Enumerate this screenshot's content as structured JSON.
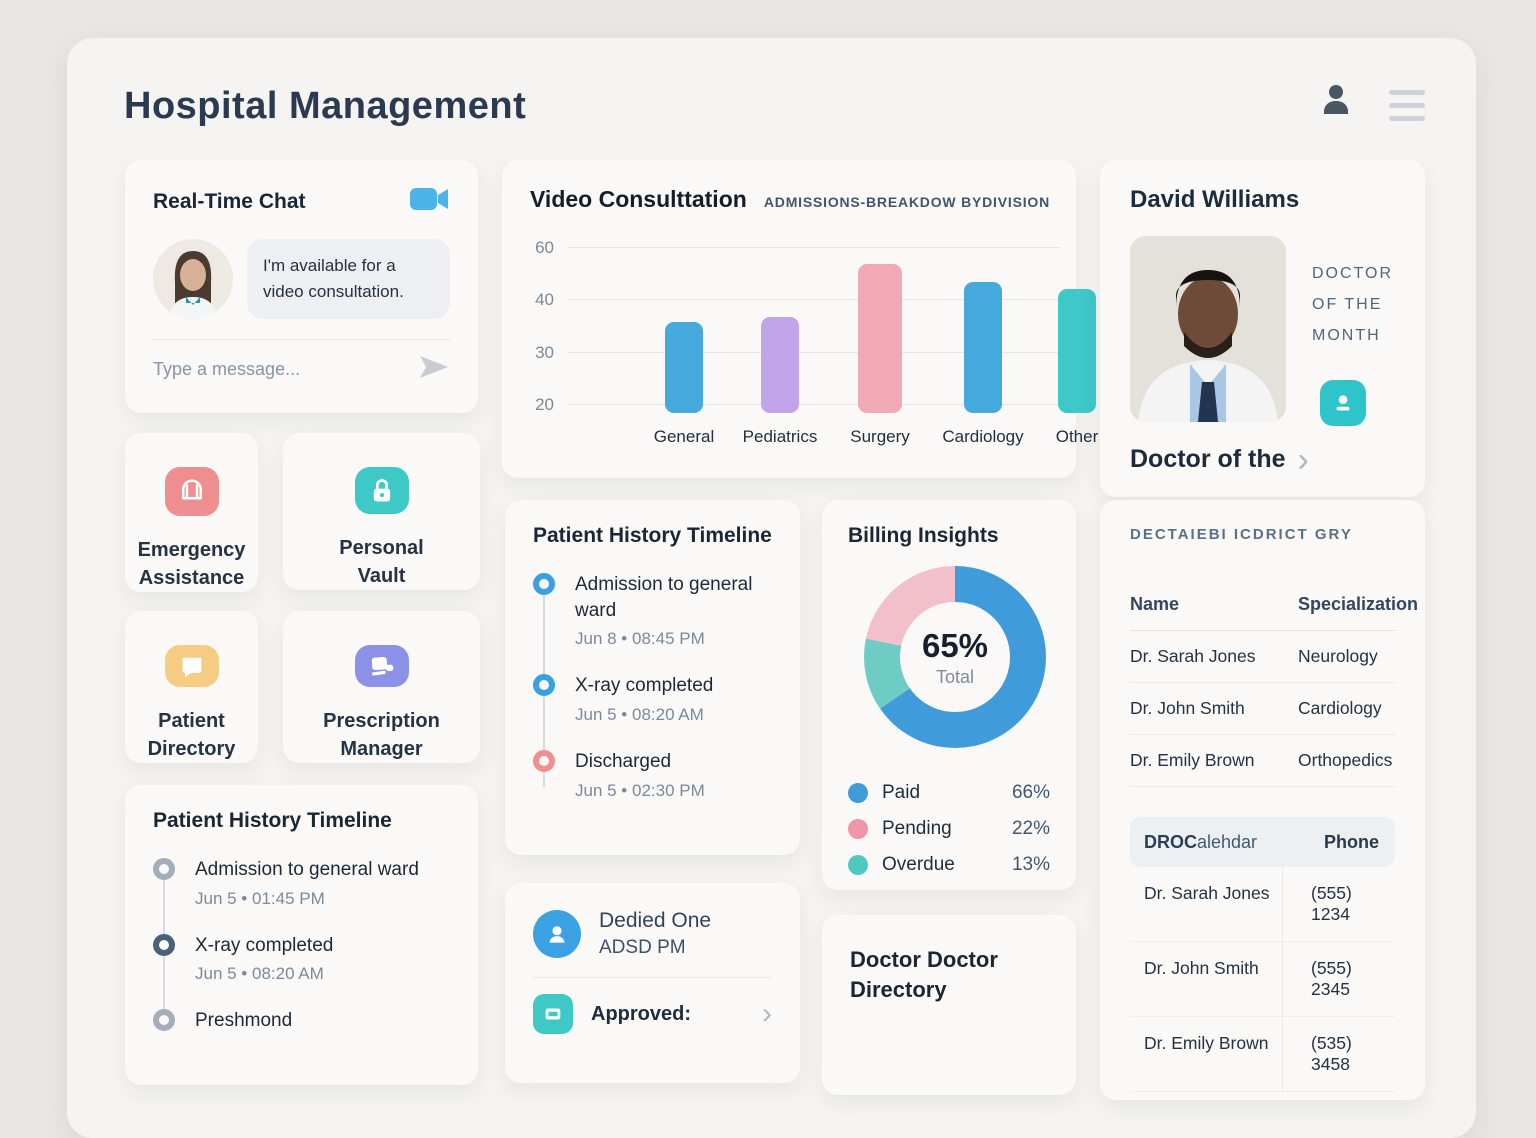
{
  "header": {
    "title": "Hospital Management",
    "profile_icon": "user-icon",
    "menu_icon": "hamburger-menu-icon"
  },
  "chat": {
    "title": "Real-Time Chat",
    "video_icon": "video-camera-icon",
    "message": "I'm available for a video consultation.",
    "input_placeholder": "Type a message...",
    "send_icon": "paper-plane-icon"
  },
  "feature_cards": [
    {
      "label": "Emergency Assistance",
      "icon": "bell-icon",
      "color": "#ee8e8e"
    },
    {
      "label": "Personal Vault",
      "icon": "lock-icon",
      "color": "#3ec9c6"
    },
    {
      "label": "Patient Directory",
      "icon": "chat-bubble-icon",
      "color": "#f6cc83"
    },
    {
      "label": "Prescription Manager",
      "icon": "prescription-cards-icon",
      "color": "#8d92e9"
    }
  ],
  "timeline_mid": {
    "title": "Patient History Timeline",
    "items": [
      {
        "title": "Admission to general ward",
        "time": "Jun 8 • 08:45 PM",
        "dot": "#3aa0e0"
      },
      {
        "title": "X-ray completed",
        "time": "Jun 5 • 08:20 AM",
        "dot": "#3aa0e0"
      },
      {
        "title": "Discharged",
        "time": "Jun 5 • 02:30 PM",
        "dot": "#ef8f8f"
      }
    ]
  },
  "timeline_bottom": {
    "title": "Patient History Timeline",
    "items": [
      {
        "title": "Admission to general ward",
        "time": "Jun 5 • 01:45 PM",
        "dot": "#a3aeba"
      },
      {
        "title": "X-ray completed",
        "time": "Jun 5 • 08:20 AM",
        "dot": "#47617a"
      },
      {
        "title": "Preshmond",
        "time": "",
        "dot": "#a3aeba"
      }
    ]
  },
  "chart_data": [
    {
      "type": "bar",
      "title": "Video Consulttation",
      "subtitle": "ADMISSIONS-BREAKDOW BYDIVISION",
      "categories": [
        "General",
        "Pediatrics",
        "Surgery",
        "Cardiology",
        "Other"
      ],
      "values": [
        36,
        37,
        54,
        47,
        45
      ],
      "xlabel": "",
      "ylabel": "",
      "ylim": [
        20,
        60
      ],
      "ytick_labels": [
        "60",
        "40",
        "30",
        "20"
      ],
      "grid": true,
      "legend_position": "none",
      "bar_colors": [
        "#45a9de",
        "#c2a4ea",
        "#f2a9b6",
        "#45a9de",
        "#3fc8c8"
      ],
      "bar_height_pct": [
        55,
        58,
        90,
        79,
        75
      ]
    },
    {
      "type": "donut",
      "title": "Billing Insights",
      "center_value": "65%",
      "center_label": "Total",
      "legend_position": "bottom",
      "segments": [
        {
          "label": "Paid",
          "value": 66,
          "pct_label": "66%",
          "color": "#3f9bd9",
          "dot": "#3f9bd9"
        },
        {
          "label": "Pending",
          "value": 22,
          "pct_label": "22%",
          "color": "#f2bfca",
          "dot": "#f096a8"
        },
        {
          "label": "Overdue",
          "value": 13,
          "pct_label": "13%",
          "color": "#6fccc5",
          "dot": "#4ec9bf"
        }
      ]
    }
  ],
  "contact_card": {
    "name": "Dedied One",
    "subtitle": "ADSD PM",
    "person_icon": "user-circle-icon",
    "person_color": "#3aa2e2",
    "approved_label": "Approved:",
    "approved_icon": "card-icon",
    "approved_color": "#3ec9c6"
  },
  "doctor_directory_card": {
    "title": "Doctor Doctor Directory"
  },
  "doctor_month": {
    "name": "David Williams",
    "badge": "DOCTOR OF THE MONTH",
    "badge_icon_color": "#2fc4c9",
    "footer_link": "Doctor of the"
  },
  "right_panel": {
    "heading": "DECTAIEBI ICDRICT GRY",
    "directory": {
      "columns": [
        "Name",
        "Specialization"
      ],
      "rows": [
        [
          "Dr. Sarah Jones",
          "Neurology"
        ],
        [
          "Dr. John Smith",
          "Cardiology"
        ],
        [
          "Dr. Emily Brown",
          "Orthopedics"
        ]
      ]
    },
    "phones": {
      "col1_bold": "DROC",
      "col1_rest": "alehdar",
      "col2": "Phone",
      "rows": [
        [
          "Dr. Sarah Jones",
          "(555) 1234"
        ],
        [
          "Dr. John Smith",
          "(555) 2345"
        ],
        [
          "Dr. Emily Brown",
          "(535) 3458"
        ]
      ]
    }
  }
}
